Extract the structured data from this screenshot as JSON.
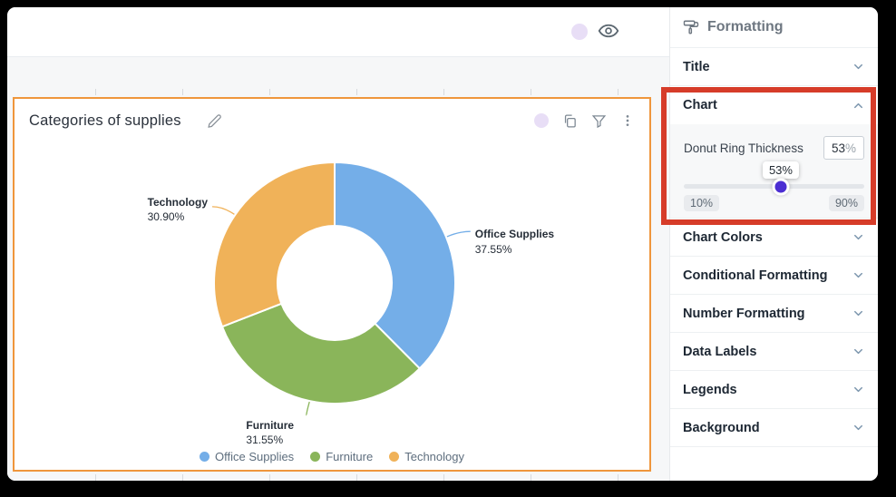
{
  "card": {
    "title": "Categories of supplies"
  },
  "chart_data": {
    "type": "pie",
    "subtype": "donut",
    "title": "Categories of supplies",
    "categories": [
      "Office Supplies",
      "Furniture",
      "Technology"
    ],
    "values": [
      37.55,
      31.55,
      30.9
    ],
    "data_labels": [
      "37.55%",
      "31.55%",
      "30.90%"
    ],
    "colors": [
      "#74aee8",
      "#8ab55a",
      "#f0b259"
    ],
    "legend_position": "bottom",
    "donut_ring_thickness_pct": 53
  },
  "panel": {
    "title": "Formatting",
    "sections": [
      {
        "label": "Title",
        "expanded": false
      },
      {
        "label": "Chart",
        "expanded": true
      },
      {
        "label": "Chart Colors",
        "expanded": false
      },
      {
        "label": "Conditional Formatting",
        "expanded": false
      },
      {
        "label": "Number Formatting",
        "expanded": false
      },
      {
        "label": "Data Labels",
        "expanded": false
      },
      {
        "label": "Legends",
        "expanded": false
      },
      {
        "label": "Background",
        "expanded": false
      }
    ],
    "chart_section": {
      "control_label": "Donut Ring Thickness",
      "input_value": "53",
      "input_suffix": "%",
      "tooltip": "53%",
      "slider": {
        "min": 10,
        "max": 90,
        "value": 53,
        "min_label": "10%",
        "max_label": "90%"
      },
      "accent_color": "#4b2ed2"
    },
    "highlight_color": "#d63c29"
  },
  "accent_colors": {
    "card_border": "#ef963c"
  }
}
